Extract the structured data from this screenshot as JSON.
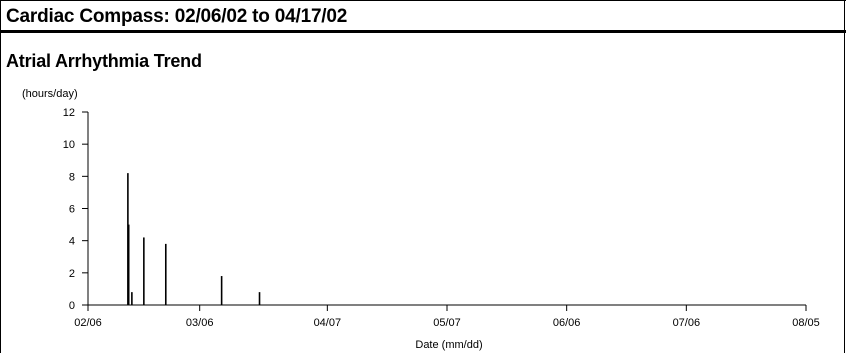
{
  "header": {
    "title": "Cardiac Compass: 02/06/02 to 04/17/02"
  },
  "section": {
    "title": "Atrial Arrhythmia Trend"
  },
  "chart_data": {
    "type": "bar",
    "title": "Atrial Arrhythmia Trend",
    "units_label": "(hours/day)",
    "xlabel": "Date (mm/dd)",
    "ylabel": "(hours/day)",
    "ylim": [
      0,
      12
    ],
    "yticks": [
      "0",
      "2",
      "4",
      "6",
      "8",
      "10",
      "12"
    ],
    "xtick_labels": [
      "02/06",
      "03/06",
      "04/07",
      "05/07",
      "06/06",
      "07/06",
      "08/05"
    ],
    "xtick_days": [
      0,
      28,
      60,
      90,
      120,
      150,
      180
    ],
    "xlim_days": [
      0,
      180
    ],
    "grid": false,
    "series": [
      {
        "x_days": [
          10,
          10.2,
          11,
          14,
          19.5,
          33.5,
          43
        ],
        "values": [
          8.2,
          5.0,
          0.8,
          4.2,
          3.8,
          1.8,
          0.8
        ]
      }
    ]
  }
}
